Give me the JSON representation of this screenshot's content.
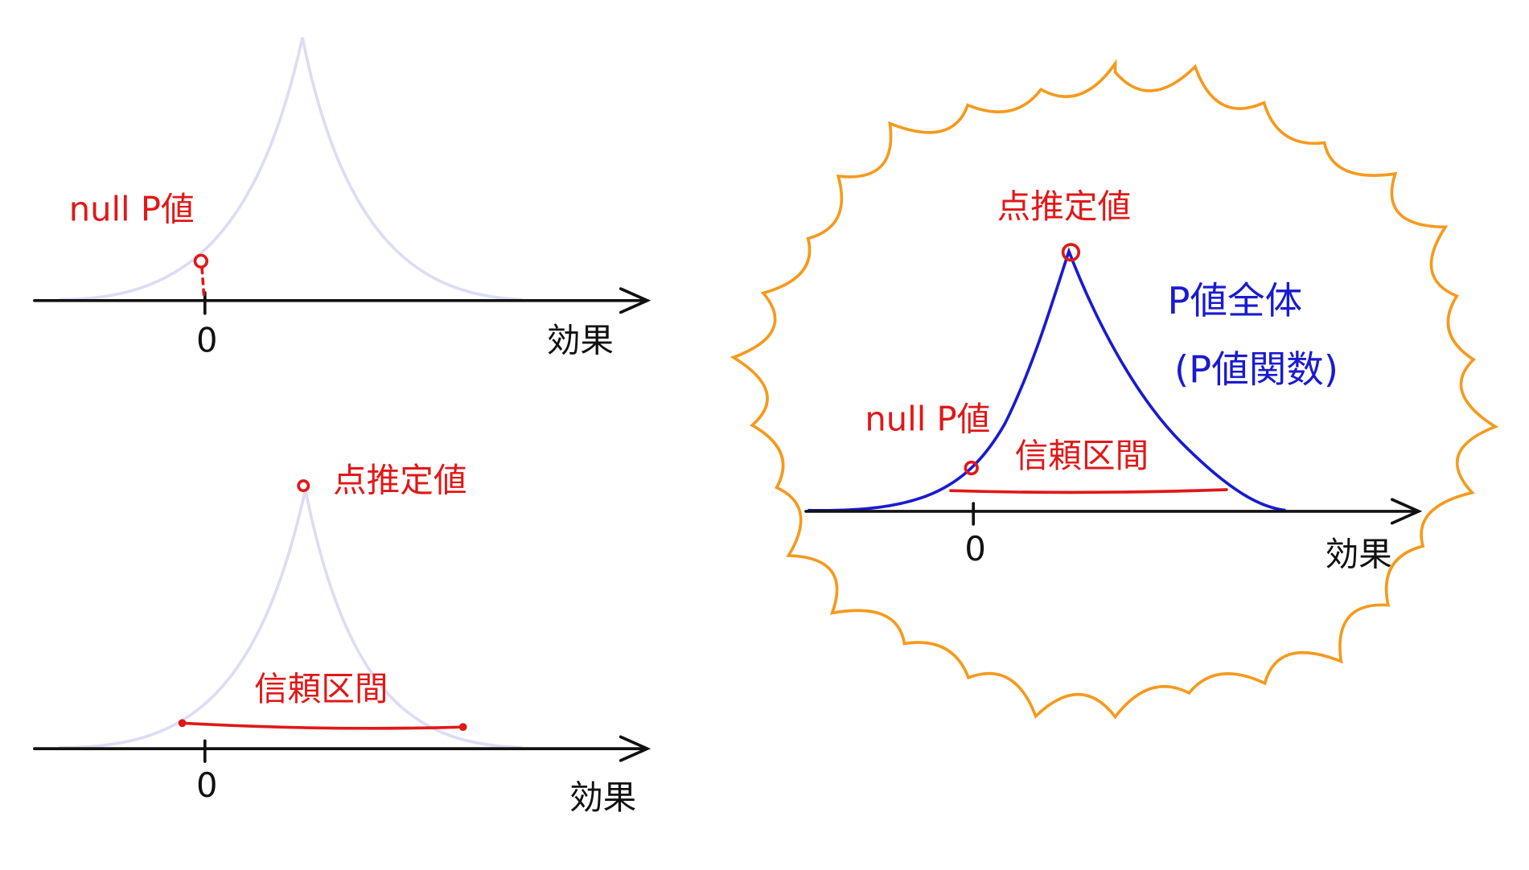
{
  "top_left": {
    "null_p_label": "null P値",
    "zero": "0",
    "axis_label": "効果"
  },
  "bottom_left": {
    "point_estimate": "点推定値",
    "confidence_interval": "信頼区間",
    "zero": "0",
    "axis_label": "効果"
  },
  "right": {
    "point_estimate": "点推定値",
    "p_value_all": "P値全体",
    "p_value_function": "(P値関数)",
    "null_p_label": "null P値",
    "confidence_interval": "信頼区間",
    "zero": "0",
    "axis_label": "効果"
  }
}
